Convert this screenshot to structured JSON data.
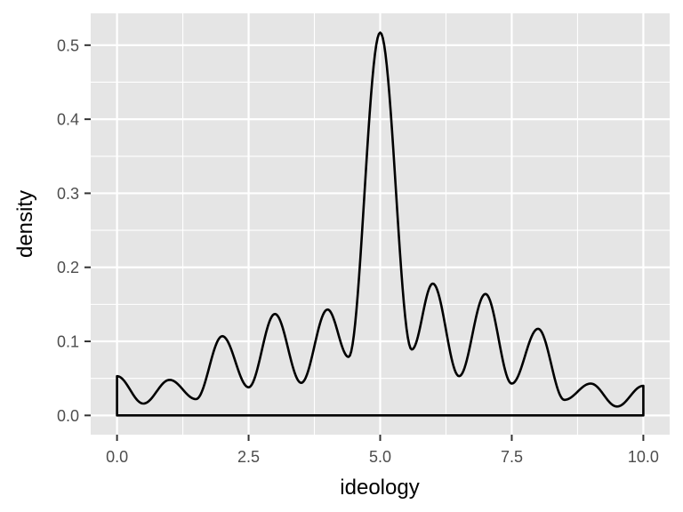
{
  "chart_data": {
    "type": "area",
    "title": "",
    "xlabel": "ideology",
    "ylabel": "density",
    "xlim": [
      -0.5,
      10.5
    ],
    "ylim": [
      -0.026,
      0.543
    ],
    "x_ticks": [
      0,
      2.5,
      5,
      7.5,
      10
    ],
    "x_tick_labels": [
      "0.0",
      "2.5",
      "5.0",
      "7.5",
      "10.0"
    ],
    "y_ticks": [
      0,
      0.1,
      0.2,
      0.3,
      0.4,
      0.5
    ],
    "y_tick_labels": [
      "0.0",
      "0.1",
      "0.2",
      "0.3",
      "0.4",
      "0.5"
    ],
    "grid": true,
    "series": [
      {
        "x": [
          0,
          0.5,
          1,
          1.5,
          2,
          2.5,
          3,
          3.5,
          4,
          4.4,
          5,
          5.6,
          6,
          6.5,
          7,
          7.5,
          8,
          8.5,
          9,
          9.5,
          10
        ],
        "y": [
          0.053,
          0.016,
          0.048,
          0.022,
          0.107,
          0.038,
          0.137,
          0.044,
          0.143,
          0.079,
          0.517,
          0.089,
          0.178,
          0.053,
          0.164,
          0.043,
          0.117,
          0.021,
          0.043,
          0.012,
          0.04
        ]
      }
    ]
  },
  "colors": {
    "panel_background": "#e5e5e5",
    "grid": "#ffffff",
    "line": "#000000",
    "tick_text": "#4d4d4d"
  }
}
